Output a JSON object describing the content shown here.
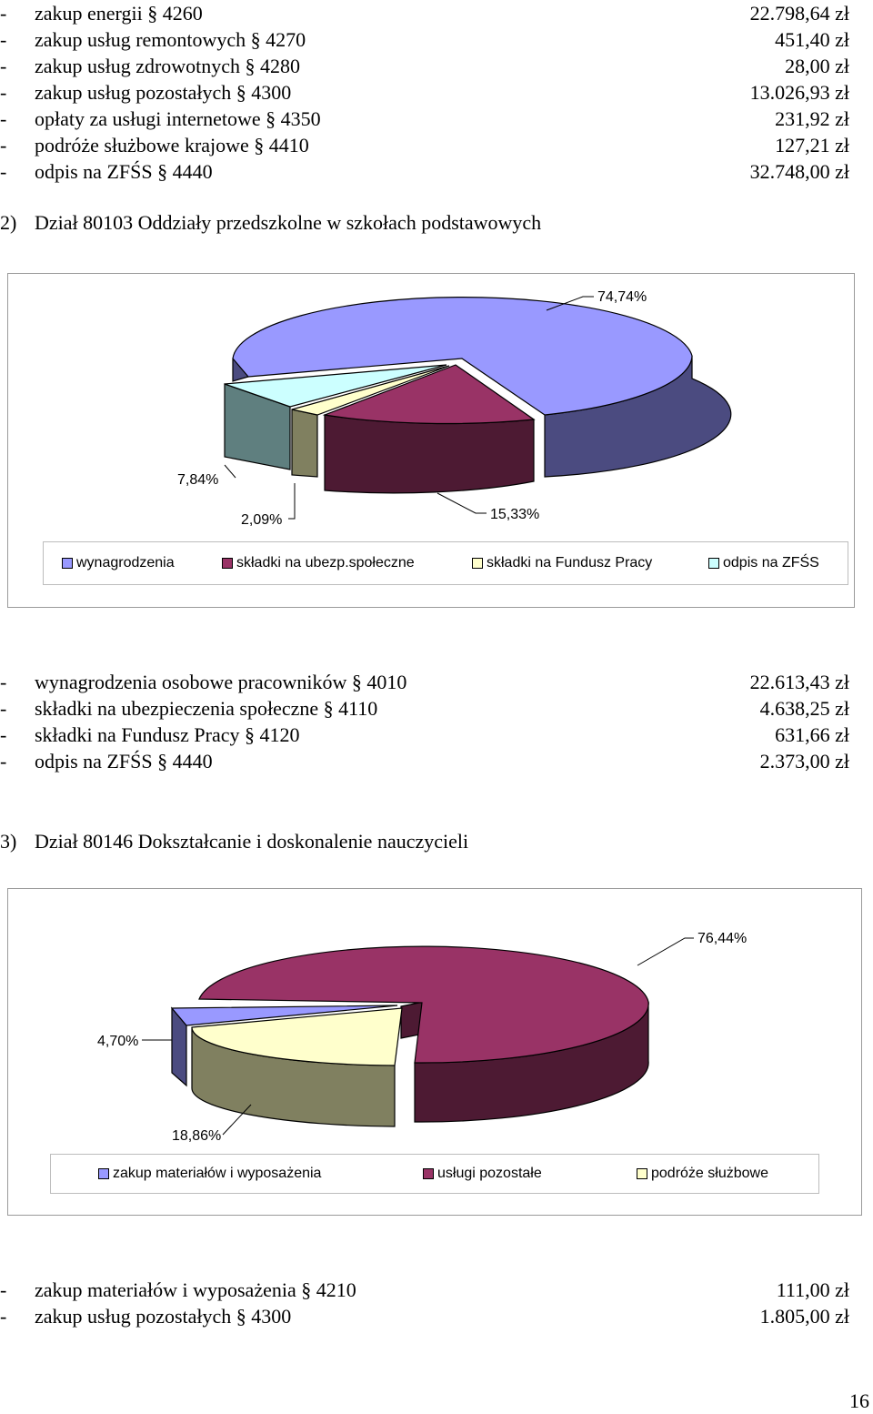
{
  "top_list": [
    {
      "dash": "-",
      "label": "zakup energii § 4260",
      "amount": "22.798,64 zł"
    },
    {
      "dash": "-",
      "label": "zakup usług remontowych § 4270",
      "amount": "451,40 zł"
    },
    {
      "dash": "-",
      "label": "zakup usług zdrowotnych § 4280",
      "amount": "28,00 zł"
    },
    {
      "dash": "-",
      "label": "zakup usług pozostałych § 4300",
      "amount": "13.026,93 zł"
    },
    {
      "dash": "-",
      "label": "opłaty za usługi internetowe § 4350",
      "amount": "231,92 zł"
    },
    {
      "dash": "-",
      "label": "podróże służbowe krajowe § 4410",
      "amount": "127,21 zł"
    },
    {
      "dash": "-",
      "label": "odpis na ZFŚS § 4440",
      "amount": "32.748,00 zł"
    }
  ],
  "section2": {
    "number": "2)",
    "title": "Dział 80103 Oddziały przedszkolne w szkołach podstawowych"
  },
  "section3": {
    "number": "3)",
    "title": "Dział 80146 Dokształcanie i doskonalenie nauczycieli"
  },
  "chart_data": [
    {
      "type": "pie",
      "style": "3d-exploded",
      "legend_position": "bottom",
      "series": [
        {
          "name": "wynagrodzenia",
          "value": 74.74,
          "label": "74,74%",
          "color": "#9999FF"
        },
        {
          "name": "składki na ubezp.społeczne",
          "value": 15.33,
          "label": "15,33%",
          "color": "#993366"
        },
        {
          "name": "składki na Fundusz Pracy",
          "value": 2.09,
          "label": "2,09%",
          "color": "#FFFFCC"
        },
        {
          "name": "odpis na ZFŚS",
          "value": 7.84,
          "label": "7,84%",
          "color": "#CCFFFF"
        }
      ]
    },
    {
      "type": "pie",
      "style": "3d-exploded",
      "legend_position": "bottom",
      "series": [
        {
          "name": "zakup materiałów i wyposażenia",
          "value": 4.7,
          "label": "4,70%",
          "color": "#9999FF"
        },
        {
          "name": "usługi pozostałe",
          "value": 76.44,
          "label": "76,44%",
          "color": "#993366"
        },
        {
          "name": "podróże służbowe",
          "value": 18.86,
          "label": "18,86%",
          "color": "#FFFFCC"
        }
      ]
    }
  ],
  "middle_list": [
    {
      "dash": "-",
      "label": "wynagrodzenia osobowe pracowników § 4010",
      "amount": "22.613,43 zł"
    },
    {
      "dash": "-",
      "label": "składki na ubezpieczenia społeczne § 4110",
      "amount": "4.638,25 zł"
    },
    {
      "dash": "-",
      "label": "składki na Fundusz Pracy § 4120",
      "amount": "631,66 zł"
    },
    {
      "dash": "-",
      "label": "odpis na ZFŚS § 4440",
      "amount": "2.373,00 zł"
    }
  ],
  "bottom_list": [
    {
      "dash": "-",
      "label": "zakup materiałów i wyposażenia § 4210",
      "amount": "111,00 zł"
    },
    {
      "dash": "-",
      "label": "zakup usług pozostałych § 4300",
      "amount": "1.805,00 zł"
    }
  ],
  "page_number": "16"
}
